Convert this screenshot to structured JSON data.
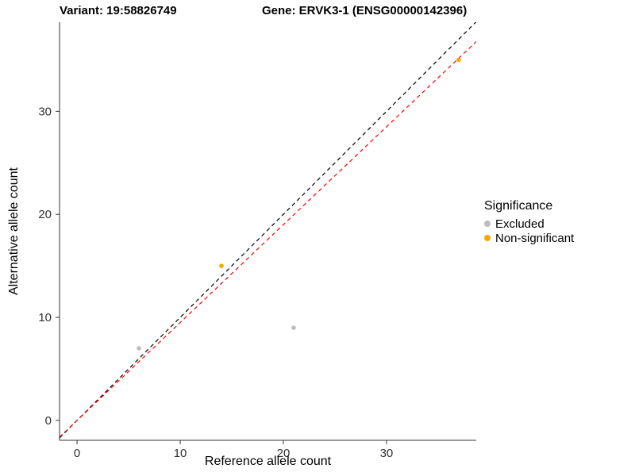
{
  "chart_data": {
    "type": "scatter",
    "title_left": "Variant: 19:58826749",
    "title_right": "Gene: ERVK3-1 (ENSG00000142396)",
    "xlabel": "Reference allele count",
    "ylabel": "Alternative allele count",
    "xlim": [
      -1.7,
      38.7
    ],
    "ylim": [
      -1.93,
      38.65
    ],
    "xticks": [
      0,
      10,
      20,
      30
    ],
    "yticks": [
      0,
      10,
      20,
      30
    ],
    "grid": false,
    "series": [
      {
        "name": "Excluded",
        "color": "#bdbdbd",
        "points": [
          [
            6,
            7
          ],
          [
            21,
            9
          ]
        ]
      },
      {
        "name": "Non-significant",
        "color": "#ffa500",
        "points": [
          [
            14,
            15
          ],
          [
            37,
            35
          ]
        ]
      }
    ],
    "lines": [
      {
        "name": "identity-line",
        "color": "#000000",
        "dash": "5,4",
        "slope": 1,
        "intercept": 0
      },
      {
        "name": "expected-ratio-line",
        "color": "#ff0000",
        "dash": "5,4",
        "slope": 0.95,
        "intercept": 0
      }
    ],
    "legend": {
      "title": "Significance",
      "position": "right",
      "entries": [
        {
          "label": "Excluded",
          "color": "#bdbdbd"
        },
        {
          "label": "Non-significant",
          "color": "#ffa500"
        }
      ]
    },
    "axis_color": "#333333",
    "tick_label_color": "#303030"
  }
}
